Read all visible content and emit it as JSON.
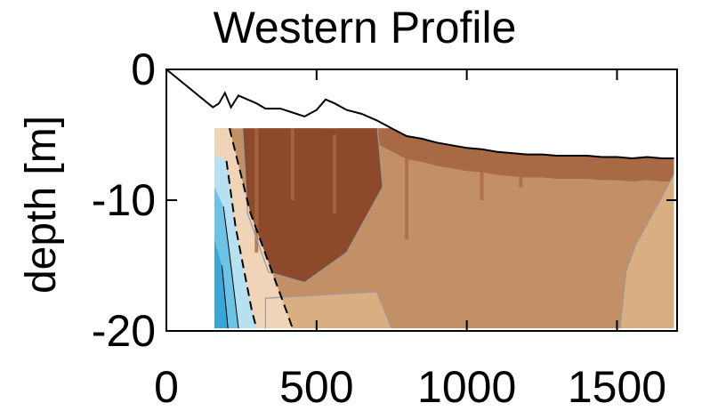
{
  "chart_data": {
    "type": "contour",
    "title": "Western Profile",
    "xlabel": "",
    "ylabel": "depth [m]",
    "xlim": [
      0,
      1700
    ],
    "ylim": [
      -20,
      0
    ],
    "x_ticks": [
      0,
      500,
      1000,
      1500
    ],
    "y_ticks": [
      0,
      -10,
      -20
    ],
    "x_tick_labels": [
      "0",
      "500",
      "1000",
      "1500"
    ],
    "y_tick_labels": [
      "0",
      "-10",
      "-20"
    ],
    "grid": false,
    "legend": "none",
    "bathymetry": {
      "x": [
        0,
        155,
        175,
        195,
        215,
        240,
        270,
        300,
        330,
        380,
        420,
        460,
        500,
        530,
        560,
        600,
        650,
        700,
        750,
        800,
        850,
        900,
        950,
        1000,
        1050,
        1100,
        1150,
        1200,
        1250,
        1300,
        1350,
        1400,
        1450,
        1500,
        1550,
        1600,
        1650,
        1690
      ],
      "depth": [
        0,
        -2.9,
        -2.6,
        -1.8,
        -2.9,
        -2.0,
        -2.3,
        -2.6,
        -3.0,
        -3.0,
        -3.3,
        -3.6,
        -3.1,
        -2.3,
        -2.6,
        -3.1,
        -3.4,
        -3.9,
        -4.5,
        -5.1,
        -5.3,
        -5.6,
        -5.8,
        -6.0,
        -6.1,
        -6.3,
        -6.4,
        -6.5,
        -6.5,
        -6.6,
        -6.6,
        -6.6,
        -6.7,
        -6.7,
        -6.8,
        -6.7,
        -6.8,
        -6.8
      ]
    },
    "data_extent_x": [
      160,
      1690
    ],
    "data_extent_depth": [
      -4.5,
      -19.8
    ],
    "colors": {
      "dark_brown": "#8c4a2b",
      "mid_brown": "#a86a45",
      "tan": "#c29064",
      "light_tan": "#d9ae80",
      "pale": "#efd4b8",
      "light_blue": "#b7e0f0",
      "blue": "#6cc3e6",
      "deep_blue": "#3aa6d8",
      "contour_line": "#9a9a9a",
      "bathy_line": "#000000"
    }
  }
}
